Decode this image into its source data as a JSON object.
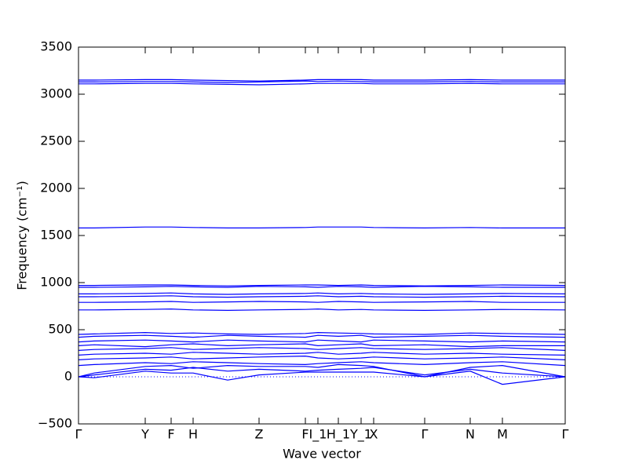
{
  "chart_data": {
    "type": "line",
    "xlabel": "Wave vector",
    "ylabel": "Frequency (cm⁻¹)",
    "color": "#0000ff",
    "x": [
      0,
      0.2,
      0.85,
      1.18,
      1.46,
      1.9,
      2.3,
      2.89,
      3.05,
      3.31,
      3.6,
      3.76,
      4.41,
      4.99,
      5.4,
      6.2
    ],
    "series": [
      {
        "values": [
          0,
          -10,
          60,
          40,
          40,
          -35,
          20,
          50,
          50,
          50,
          50,
          50,
          0,
          60,
          -80,
          0
        ]
      },
      {
        "values": [
          0,
          20,
          80,
          70,
          100,
          60,
          80,
          60,
          70,
          80,
          90,
          100,
          20,
          80,
          40,
          0
        ]
      },
      {
        "values": [
          0,
          40,
          110,
          120,
          90,
          120,
          110,
          110,
          100,
          130,
          120,
          110,
          0,
          100,
          120,
          0
        ]
      },
      {
        "values": [
          120,
          130,
          150,
          140,
          160,
          150,
          140,
          130,
          140,
          150,
          160,
          150,
          130,
          150,
          160,
          120
        ]
      },
      {
        "values": [
          180,
          190,
          200,
          210,
          190,
          200,
          210,
          220,
          200,
          190,
          200,
          210,
          190,
          200,
          210,
          180
        ]
      },
      {
        "values": [
          230,
          240,
          250,
          240,
          260,
          250,
          240,
          250,
          260,
          240,
          250,
          260,
          240,
          250,
          240,
          230
        ]
      },
      {
        "values": [
          280,
          290,
          300,
          310,
          290,
          300,
          310,
          300,
          290,
          300,
          310,
          300,
          290,
          300,
          310,
          280
        ]
      },
      {
        "values": [
          330,
          340,
          320,
          340,
          350,
          330,
          340,
          350,
          330,
          340,
          350,
          330,
          340,
          320,
          330,
          330
        ]
      },
      {
        "values": [
          370,
          380,
          390,
          380,
          370,
          390,
          380,
          370,
          390,
          380,
          370,
          390,
          380,
          370,
          380,
          370
        ]
      },
      {
        "values": [
          420,
          430,
          440,
          430,
          420,
          440,
          430,
          420,
          440,
          430,
          440,
          420,
          430,
          440,
          430,
          420
        ]
      },
      {
        "values": [
          450,
          455,
          470,
          460,
          465,
          455,
          450,
          460,
          470,
          465,
          460,
          455,
          450,
          465,
          460,
          450
        ]
      },
      {
        "values": [
          710,
          710,
          715,
          720,
          710,
          705,
          710,
          715,
          720,
          710,
          715,
          710,
          705,
          710,
          715,
          710
        ]
      },
      {
        "values": [
          790,
          790,
          795,
          800,
          790,
          795,
          800,
          795,
          790,
          800,
          795,
          790,
          795,
          800,
          790,
          790
        ]
      },
      {
        "values": [
          850,
          850,
          855,
          860,
          850,
          845,
          850,
          855,
          860,
          850,
          855,
          850,
          845,
          850,
          855,
          850
        ]
      },
      {
        "values": [
          880,
          880,
          885,
          890,
          880,
          875,
          880,
          885,
          890,
          880,
          885,
          880,
          875,
          880,
          885,
          880
        ]
      },
      {
        "values": [
          950,
          950,
          955,
          960,
          955,
          950,
          960,
          955,
          950,
          960,
          955,
          950,
          960,
          955,
          950,
          950
        ]
      },
      {
        "values": [
          970,
          970,
          975,
          975,
          970,
          965,
          970,
          975,
          975,
          970,
          975,
          970,
          965,
          970,
          975,
          970
        ]
      },
      {
        "values": [
          1580,
          1580,
          1590,
          1590,
          1585,
          1580,
          1580,
          1585,
          1590,
          1590,
          1590,
          1585,
          1580,
          1585,
          1580,
          1580
        ]
      },
      {
        "values": [
          3110,
          3110,
          3115,
          3115,
          3110,
          3105,
          3100,
          3110,
          3115,
          3115,
          3115,
          3110,
          3110,
          3115,
          3110,
          3110
        ]
      },
      {
        "values": [
          3130,
          3130,
          3135,
          3135,
          3130,
          3125,
          3130,
          3140,
          3135,
          3140,
          3135,
          3130,
          3130,
          3135,
          3130,
          3130
        ]
      },
      {
        "values": [
          3150,
          3150,
          3155,
          3155,
          3150,
          3145,
          3140,
          3150,
          3155,
          3155,
          3155,
          3150,
          3150,
          3155,
          3150,
          3150
        ]
      }
    ],
    "xlim": [
      0,
      6.2
    ],
    "xticks": [
      {
        "value": 0,
        "label": "Γ"
      },
      {
        "value": 0.85,
        "label": "Y"
      },
      {
        "value": 1.18,
        "label": "F"
      },
      {
        "value": 1.46,
        "label": "H"
      },
      {
        "value": 2.3,
        "label": "Z"
      },
      {
        "value": 2.89,
        "label": "F"
      },
      {
        "value": 3.05,
        "label": "I_1"
      },
      {
        "value": 3.31,
        "label": "H_1"
      },
      {
        "value": 3.6,
        "label": "Y_1"
      },
      {
        "value": 3.76,
        "label": "X"
      },
      {
        "value": 4.41,
        "label": "Γ"
      },
      {
        "value": 4.99,
        "label": "N"
      },
      {
        "value": 5.4,
        "label": "M"
      },
      {
        "value": 6.2,
        "label": "Γ"
      }
    ],
    "ylim": [
      -500,
      3500
    ],
    "yticks": [
      {
        "value": -500,
        "label": "−500"
      },
      0,
      500,
      1000,
      1500,
      2000,
      2500,
      3000,
      3500
    ]
  }
}
